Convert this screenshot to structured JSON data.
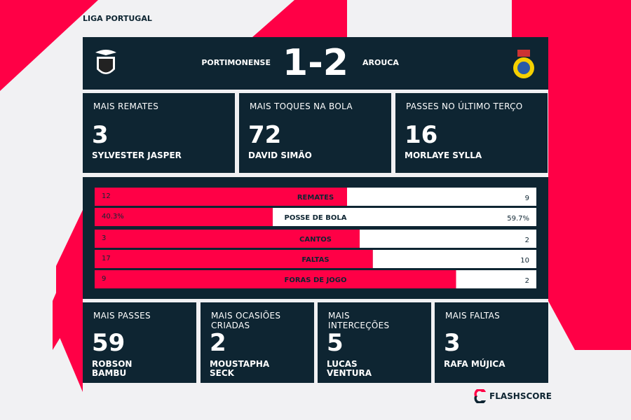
{
  "header": {
    "league": "LIGA PORTUGAL"
  },
  "match": {
    "home": "PORTIMONENSE",
    "score": "1-2",
    "away": "AROUCA"
  },
  "top_cards": [
    {
      "title": "MAIS REMATES",
      "value": 3,
      "player": "SYLVESTER JASPER"
    },
    {
      "title": "MAIS TOQUES NA BOLA",
      "value": 72,
      "player": "DAVID SIMÃO"
    },
    {
      "title": "PASSES NO ÚLTIMO TERÇO",
      "value": 16,
      "player": "MORLAYE SYLLA"
    }
  ],
  "comparison": {
    "rows": [
      {
        "label": "REMATES",
        "values": [
          12,
          9
        ]
      },
      {
        "label": "POSSE DE BOLA",
        "values": [
          40.3,
          59.7
        ],
        "value_labels": [
          "40.3%",
          "59.7%"
        ]
      },
      {
        "label": "CANTOS",
        "values": [
          3,
          2
        ]
      },
      {
        "label": "FALTAS",
        "values": [
          17,
          10
        ]
      },
      {
        "label": "FORAS DE JOGO",
        "values": [
          9,
          2
        ]
      }
    ]
  },
  "bottom_cards": [
    {
      "title": "MAIS PASSES",
      "value": 59,
      "player": "ROBSON BAMBU"
    },
    {
      "title": "MAIS OCASIÕES CRIADAS",
      "value": 2,
      "player": "MOUSTAPHA SECK"
    },
    {
      "title": "MAIS INTERCEÇÕES",
      "value": 5,
      "player": "LUCAS VENTURA"
    },
    {
      "title": "MAIS FALTAS",
      "value": 3,
      "player": "RAFA MÚJICA"
    }
  ],
  "brand": "FLASHSCORE"
}
